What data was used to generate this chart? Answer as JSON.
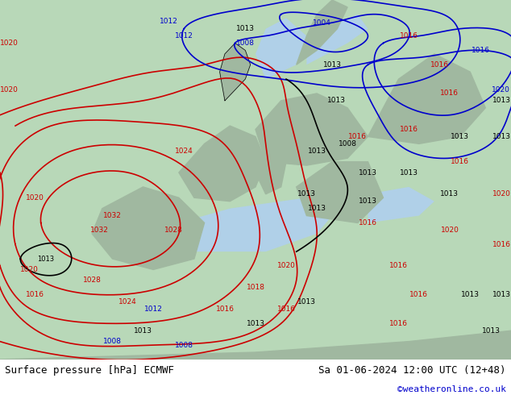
{
  "title_left": "Surface pressure [hPa] ECMWF",
  "title_right": "Sa 01-06-2024 12:00 UTC (12+48)",
  "credit": "©weatheronline.co.uk",
  "bg_color": "#c8e6c8",
  "land_color": "#c8e6c8",
  "sea_color": "#d0e8ff",
  "border_color": "#888888",
  "footer_bg": "#e8e8e8",
  "isobar_red_color": "#cc0000",
  "isobar_blue_color": "#0000cc",
  "isobar_black_color": "#000000",
  "label_red": "#cc0000",
  "label_blue": "#0000cc",
  "label_black": "#000000",
  "credit_color": "#0000cc",
  "figsize": [
    6.34,
    4.9
  ],
  "dpi": 100
}
